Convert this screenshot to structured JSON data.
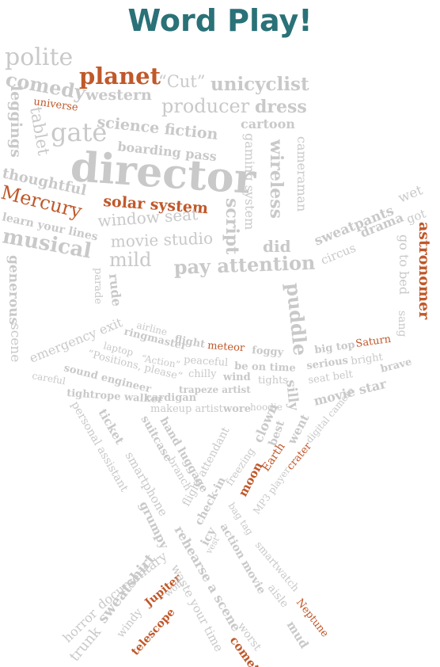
{
  "title": "Word Play!",
  "palette": {
    "gray": "#c9c9c9",
    "orange": "#c0582a",
    "teal": "#2a7178"
  },
  "words": [
    {
      "t": "polite",
      "c": "gray",
      "w": "normal"
    },
    {
      "t": "planet",
      "c": "orange",
      "w": "bold"
    },
    {
      "t": "“Cut”",
      "c": "gray",
      "w": "normal"
    },
    {
      "t": "unicyclist",
      "c": "gray",
      "w": "bold"
    },
    {
      "t": "comedy",
      "c": "gray",
      "w": "bold"
    },
    {
      "t": "western",
      "c": "gray",
      "w": "bold"
    },
    {
      "t": "producer",
      "c": "gray",
      "w": "normal"
    },
    {
      "t": "dress",
      "c": "gray",
      "w": "bold"
    },
    {
      "t": "universe",
      "c": "orange",
      "w": "normal"
    },
    {
      "t": "leggings",
      "c": "gray",
      "w": "bold"
    },
    {
      "t": "tablet",
      "c": "gray",
      "w": "normal"
    },
    {
      "t": "gate",
      "c": "gray",
      "w": "normal"
    },
    {
      "t": "science fiction",
      "c": "gray",
      "w": "bold"
    },
    {
      "t": "cartoon",
      "c": "gray",
      "w": "bold"
    },
    {
      "t": "boarding pass",
      "c": "gray",
      "w": "bold"
    },
    {
      "t": "director",
      "c": "gray",
      "w": "bold"
    },
    {
      "t": "gaming system",
      "c": "gray",
      "w": "normal"
    },
    {
      "t": "wireless",
      "c": "gray",
      "w": "bold"
    },
    {
      "t": "cameraman",
      "c": "gray",
      "w": "normal"
    },
    {
      "t": "thoughtful",
      "c": "gray",
      "w": "bold"
    },
    {
      "t": "Mercury",
      "c": "orange",
      "w": "normal"
    },
    {
      "t": "solar system",
      "c": "orange",
      "w": "bold"
    },
    {
      "t": "script",
      "c": "gray",
      "w": "bold"
    },
    {
      "t": "learn your lines",
      "c": "gray",
      "w": "bold"
    },
    {
      "t": "window seat",
      "c": "gray",
      "w": "normal"
    },
    {
      "t": "musical",
      "c": "gray",
      "w": "bold"
    },
    {
      "t": "movie studio",
      "c": "gray",
      "w": "normal"
    },
    {
      "t": "did",
      "c": "gray",
      "w": "bold"
    },
    {
      "t": "mild",
      "c": "gray",
      "w": "normal"
    },
    {
      "t": "pay attention",
      "c": "gray",
      "w": "bold"
    },
    {
      "t": "generous",
      "c": "gray",
      "w": "bold"
    },
    {
      "t": "scene",
      "c": "gray",
      "w": "normal"
    },
    {
      "t": "parade",
      "c": "gray",
      "w": "normal"
    },
    {
      "t": "rude",
      "c": "gray",
      "w": "bold"
    },
    {
      "t": "puddle",
      "c": "gray",
      "w": "bold"
    },
    {
      "t": "silly",
      "c": "gray",
      "w": "bold"
    },
    {
      "t": "sweatpants",
      "c": "gray",
      "w": "bold"
    },
    {
      "t": "wet",
      "c": "gray",
      "w": "normal"
    },
    {
      "t": "got",
      "c": "gray",
      "w": "normal"
    },
    {
      "t": "drama",
      "c": "gray",
      "w": "bold"
    },
    {
      "t": "circus",
      "c": "gray",
      "w": "normal"
    },
    {
      "t": "astronomer",
      "c": "orange",
      "w": "bold"
    },
    {
      "t": "go to bed",
      "c": "gray",
      "w": "normal"
    },
    {
      "t": "sang",
      "c": "gray",
      "w": "normal"
    },
    {
      "t": "emergency exit",
      "c": "gray",
      "w": "normal"
    },
    {
      "t": "airline",
      "c": "gray",
      "w": "normal"
    },
    {
      "t": "flight",
      "c": "gray",
      "w": "bold"
    },
    {
      "t": "meteor",
      "c": "orange",
      "w": "normal"
    },
    {
      "t": "foggy",
      "c": "gray",
      "w": "bold"
    },
    {
      "t": "ringmaster",
      "c": "gray",
      "w": "bold"
    },
    {
      "t": "laptop",
      "c": "gray",
      "w": "normal"
    },
    {
      "t": "“Action”",
      "c": "gray",
      "w": "normal"
    },
    {
      "t": "peaceful",
      "c": "gray",
      "w": "normal"
    },
    {
      "t": "be on time",
      "c": "gray",
      "w": "bold"
    },
    {
      "t": "big top",
      "c": "gray",
      "w": "bold"
    },
    {
      "t": "Saturn",
      "c": "orange",
      "w": "normal"
    },
    {
      "t": "serious",
      "c": "gray",
      "w": "bold"
    },
    {
      "t": "bright",
      "c": "gray",
      "w": "normal"
    },
    {
      "t": "brave",
      "c": "gray",
      "w": "bold"
    },
    {
      "t": "seat belt",
      "c": "gray",
      "w": "normal"
    },
    {
      "t": "“Positions, please”",
      "c": "gray",
      "w": "normal"
    },
    {
      "t": "chilly",
      "c": "gray",
      "w": "normal"
    },
    {
      "t": "wind",
      "c": "gray",
      "w": "bold"
    },
    {
      "t": "tights",
      "c": "gray",
      "w": "normal"
    },
    {
      "t": "sound engineer",
      "c": "gray",
      "w": "bold"
    },
    {
      "t": "trapeze artist",
      "c": "gray",
      "w": "bold"
    },
    {
      "t": "movie star",
      "c": "gray",
      "w": "bold"
    },
    {
      "t": "careful",
      "c": "gray",
      "w": "normal"
    },
    {
      "t": "cardigan",
      "c": "gray",
      "w": "bold"
    },
    {
      "t": "tightrope walker",
      "c": "gray",
      "w": "bold"
    },
    {
      "t": "makeup artist",
      "c": "gray",
      "w": "normal"
    },
    {
      "t": "wore",
      "c": "gray",
      "w": "bold"
    },
    {
      "t": "hoodie",
      "c": "gray",
      "w": "normal"
    },
    {
      "t": "digital camera",
      "c": "gray",
      "w": "normal"
    },
    {
      "t": "personal assistant",
      "c": "gray",
      "w": "normal"
    },
    {
      "t": "ticket",
      "c": "gray",
      "w": "bold"
    },
    {
      "t": "smartphone",
      "c": "gray",
      "w": "normal"
    },
    {
      "t": "suitcase",
      "c": "gray",
      "w": "bold"
    },
    {
      "t": "branch",
      "c": "gray",
      "w": "normal"
    },
    {
      "t": "hand luggage",
      "c": "gray",
      "w": "bold"
    },
    {
      "t": "clown",
      "c": "gray",
      "w": "bold"
    },
    {
      "t": "best",
      "c": "gray",
      "w": "bold"
    },
    {
      "t": "went",
      "c": "gray",
      "w": "bold"
    },
    {
      "t": "crater",
      "c": "orange",
      "w": "normal"
    },
    {
      "t": "flight attendant",
      "c": "gray",
      "w": "normal"
    },
    {
      "t": "freezing",
      "c": "gray",
      "w": "normal"
    },
    {
      "t": "Earth",
      "c": "orange",
      "w": "normal"
    },
    {
      "t": "moon",
      "c": "orange",
      "w": "bold"
    },
    {
      "t": "check-in",
      "c": "gray",
      "w": "bold"
    },
    {
      "t": "MP3 player",
      "c": "gray",
      "w": "normal"
    },
    {
      "t": "grumpy",
      "c": "gray",
      "w": "bold"
    },
    {
      "t": "bag tag",
      "c": "gray",
      "w": "normal"
    },
    {
      "t": "icy",
      "c": "gray",
      "w": "bold"
    },
    {
      "t": "vest",
      "c": "gray",
      "w": "normal"
    },
    {
      "t": "action movie",
      "c": "gray",
      "w": "bold"
    },
    {
      "t": "smartwatch",
      "c": "gray",
      "w": "normal"
    },
    {
      "t": "documentary",
      "c": "gray",
      "w": "normal"
    },
    {
      "t": "horror",
      "c": "gray",
      "w": "normal"
    },
    {
      "t": "trunk",
      "c": "gray",
      "w": "normal"
    },
    {
      "t": "sweatshirt",
      "c": "gray",
      "w": "bold"
    },
    {
      "t": "windy",
      "c": "gray",
      "w": "normal"
    },
    {
      "t": "Jupiter",
      "c": "orange",
      "w": "bold"
    },
    {
      "t": "won",
      "c": "gray",
      "w": "normal"
    },
    {
      "t": "telescope",
      "c": "orange",
      "w": "bold"
    },
    {
      "t": "rehearse a scene",
      "c": "gray",
      "w": "bold"
    },
    {
      "t": "waste your time",
      "c": "gray",
      "w": "normal"
    },
    {
      "t": "aisle",
      "c": "gray",
      "w": "normal"
    },
    {
      "t": "Neptune",
      "c": "orange",
      "w": "normal"
    },
    {
      "t": "mud",
      "c": "gray",
      "w": "bold"
    },
    {
      "t": "worst",
      "c": "gray",
      "w": "normal"
    },
    {
      "t": "comet",
      "c": "orange",
      "w": "bold"
    }
  ]
}
